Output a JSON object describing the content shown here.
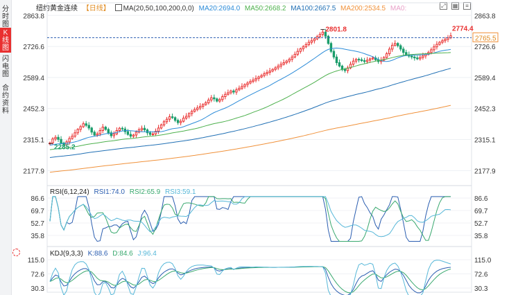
{
  "sidebar": {
    "tabs": [
      {
        "label": "分\n时\n图",
        "active": false
      },
      {
        "label": "K\n线\n图",
        "active": true
      },
      {
        "label": "闪\n电\n图",
        "active": false
      },
      {
        "label": "合\n约\n资\n料",
        "active": false
      }
    ]
  },
  "header": {
    "title": "纽约黄金连续",
    "period": "【日线】",
    "ma_label": "MA(20,50,100,200,0,0)",
    "ma20": "MA20:2694.0",
    "ma50": "MA50:2668.2",
    "ma100": "MA100:2667.5",
    "ma200": "MA200:2534.5",
    "ma0": "MA0:"
  },
  "colors": {
    "up": "#e93030",
    "down": "#1a9d6b",
    "ma20": "#2b8bd8",
    "ma50": "#4cb04c",
    "ma100": "#1f6fb4",
    "ma200": "#f0913a",
    "rsi1": "#2a5db0",
    "rsi2": "#38a86e",
    "rsi3": "#56b7d8",
    "k": "#2a5db0",
    "d": "#38a86e",
    "j": "#56b7d8",
    "price_line": "#2a5db0",
    "price_tag": "#f0913a"
  },
  "price_axis": {
    "labels": [
      "2863.8",
      "2726.6",
      "2589.4",
      "2452.3",
      "2315.1",
      "2177.9"
    ]
  },
  "annotations": {
    "high": "2801.8",
    "low": "2285.2",
    "last": "2774.4",
    "current_price": "2765.5"
  },
  "rsi": {
    "label": "RSI(6,12,24)",
    "rsi1": "RSI1:74.0",
    "rsi2": "RSI2:65.9",
    "rsi3": "RSI3:59.1",
    "axis_labels": [
      "86.6",
      "69.7",
      "52.7",
      "35.8"
    ]
  },
  "kdj": {
    "label": "KDJ(9,3,3)",
    "k": "K:88.6",
    "d": "D:84.6",
    "j": "J:96.4",
    "axis_labels": [
      "115.0",
      "72.6",
      "30.3"
    ]
  },
  "chart_data": {
    "type": "candlestick",
    "title": "纽约黄金连续 日线",
    "y_range": [
      2130,
      2880
    ],
    "latest_ma": {
      "MA20": 2694.0,
      "MA50": 2668.2,
      "MA100": 2667.5,
      "MA200": 2534.5
    },
    "closes": [
      2300,
      2318,
      2325,
      2316,
      2300,
      2292,
      2305,
      2320,
      2330,
      2345,
      2360,
      2372,
      2385,
      2378,
      2366,
      2348,
      2335,
      2340,
      2355,
      2370,
      2360,
      2345,
      2332,
      2340,
      2355,
      2365,
      2362,
      2350,
      2338,
      2330,
      2335,
      2348,
      2358,
      2365,
      2358,
      2345,
      2338,
      2340,
      2352,
      2366,
      2380,
      2394,
      2405,
      2416,
      2412,
      2400,
      2390,
      2396,
      2410,
      2418,
      2430,
      2440,
      2448,
      2455,
      2462,
      2470,
      2478,
      2490,
      2500,
      2495,
      2485,
      2492,
      2505,
      2515,
      2522,
      2530,
      2525,
      2535,
      2542,
      2550,
      2558,
      2565,
      2572,
      2578,
      2585,
      2592,
      2598,
      2606,
      2612,
      2618,
      2625,
      2632,
      2640,
      2648,
      2655,
      2662,
      2670,
      2680,
      2692,
      2705,
      2716,
      2725,
      2735,
      2745,
      2752,
      2760,
      2770,
      2780,
      2790,
      2772,
      2740,
      2705,
      2680,
      2655,
      2640,
      2625,
      2620,
      2632,
      2648,
      2662,
      2670,
      2668,
      2664,
      2660,
      2666,
      2672,
      2676,
      2668,
      2660,
      2666,
      2678,
      2695,
      2715,
      2732,
      2740,
      2730,
      2715,
      2700,
      2690,
      2684,
      2680,
      2676,
      2672,
      2678,
      2685,
      2692,
      2700,
      2712,
      2725,
      2736,
      2745,
      2752,
      2758,
      2765,
      2774
    ],
    "rsi_last": {
      "RSI1": 74.0,
      "RSI2": 65.9,
      "RSI3": 59.1
    },
    "rsi_range": [
      35.8,
      86.6
    ],
    "kdj_last": {
      "K": 88.6,
      "D": 84.6,
      "J": 96.4
    },
    "kdj_range": [
      30.3,
      115.0
    ]
  }
}
